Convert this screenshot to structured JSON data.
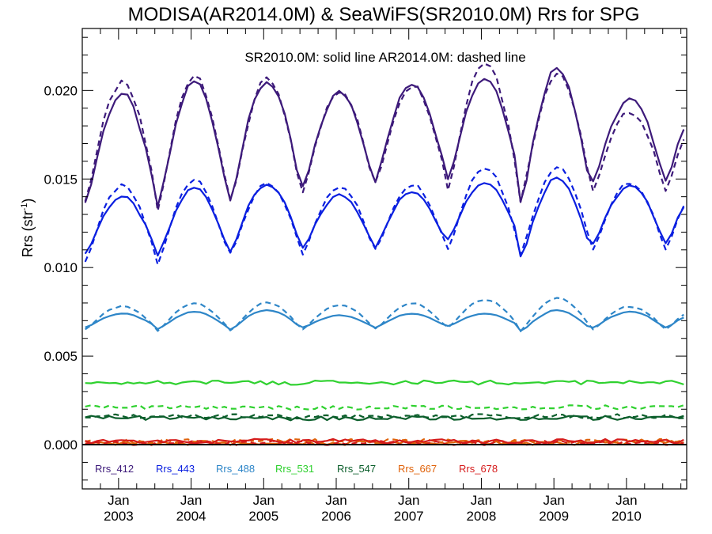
{
  "chart_data": {
    "type": "line",
    "title": "MODISA(AR2014.0M) & SeaWiFS(SR2010.0M)  Rrs for SPG",
    "annotation": "SR2010.0M: solid line   AR2014.0M: dashed line",
    "ylabel": "Rrs (str",
    "ylabel_superscript": "-1",
    "ylabel_close": ")",
    "ylim": [
      -0.0025,
      0.0235
    ],
    "xlim": [
      2002.5,
      2010.83
    ],
    "yticks": [
      0.0,
      0.005,
      0.01,
      0.015,
      0.02
    ],
    "ytick_labels": [
      "0.000",
      "0.005",
      "0.010",
      "0.015",
      "0.020"
    ],
    "xticks": [
      {
        "top": "Jan",
        "bottom": "2003",
        "x": 2003.0
      },
      {
        "top": "Jan",
        "bottom": "2004",
        "x": 2004.0
      },
      {
        "top": "Jan",
        "bottom": "2005",
        "x": 2005.0
      },
      {
        "top": "Jan",
        "bottom": "2006",
        "x": 2006.0
      },
      {
        "top": "Jan",
        "bottom": "2007",
        "x": 2007.0
      },
      {
        "top": "Jan",
        "bottom": "2008",
        "x": 2008.0
      },
      {
        "top": "Jan",
        "bottom": "2009",
        "x": 2009.0
      },
      {
        "top": "Jan",
        "bottom": "2010",
        "x": 2010.0
      }
    ],
    "series": [
      {
        "name": "Rrs_412",
        "color": "#3d1a7a",
        "seasonal": {
          "min": 0.0138,
          "max": 0.0203,
          "shape": "peak"
        },
        "solid_yearly_max": [
          0.0198,
          0.0205,
          0.0205,
          0.0199,
          0.0204,
          0.0207,
          0.0213,
          0.0195
        ],
        "dashed_yearly_max": [
          0.0204,
          0.0209,
          0.0206,
          0.02,
          0.0203,
          0.0217,
          0.021,
          0.0188
        ],
        "solid_yearly_min": [
          0.0135,
          0.0133,
          0.0138,
          0.0144,
          0.0148,
          0.015,
          0.0135,
          0.0148
        ],
        "dashed_yearly_min": [
          0.0137,
          0.0131,
          0.0136,
          0.0142,
          0.0146,
          0.0143,
          0.0137,
          0.0143
        ]
      },
      {
        "name": "Rrs_443",
        "color": "#0a1fe0",
        "solid_yearly_max": [
          0.014,
          0.0145,
          0.0147,
          0.0141,
          0.0143,
          0.0148,
          0.0151,
          0.0146
        ],
        "dashed_yearly_max": [
          0.0146,
          0.015,
          0.0147,
          0.0146,
          0.0147,
          0.0157,
          0.0157,
          0.0148
        ],
        "solid_yearly_min": [
          0.0107,
          0.0106,
          0.0109,
          0.011,
          0.0111,
          0.0116,
          0.0105,
          0.0113
        ],
        "dashed_yearly_min": [
          0.0103,
          0.0101,
          0.0107,
          0.0107,
          0.0109,
          0.011,
          0.0107,
          0.011
        ]
      },
      {
        "name": "Rrs_488",
        "color": "#2e86c8",
        "solid_yearly_max": [
          0.0074,
          0.0075,
          0.0076,
          0.0073,
          0.0074,
          0.0074,
          0.0076,
          0.0075
        ],
        "dashed_yearly_max": [
          0.0078,
          0.008,
          0.008,
          0.0079,
          0.008,
          0.0082,
          0.0083,
          0.0078
        ],
        "solid_yearly_min": [
          0.0066,
          0.0065,
          0.0065,
          0.0066,
          0.0066,
          0.0067,
          0.0064,
          0.0066
        ],
        "dashed_yearly_min": [
          0.0065,
          0.0064,
          0.0064,
          0.0065,
          0.0065,
          0.0066,
          0.0064,
          0.0065
        ]
      },
      {
        "name": "Rrs_531",
        "color": "#2fd12f",
        "solid_level": 0.0035,
        "dashed_level": 0.0021
      },
      {
        "name": "Rrs_547",
        "color": "#0b5e2b",
        "solid_level": 0.0015,
        "dashed_level": 0.0016
      },
      {
        "name": "Rrs_667",
        "color": "#e0620a",
        "solid_level": 0.0001,
        "dashed_level": 0.0002
      },
      {
        "name": "Rrs_678",
        "color": "#d61c1c",
        "solid_level": 0.0002,
        "dashed_level": 0.0001
      }
    ],
    "legend": [
      "Rrs_412",
      "Rrs_443",
      "Rrs_488",
      "Rrs_531",
      "Rrs_547",
      "Rrs_667",
      "Rrs_678"
    ],
    "legend_position": "bottom-inside",
    "zero_line": true,
    "grid": false
  }
}
